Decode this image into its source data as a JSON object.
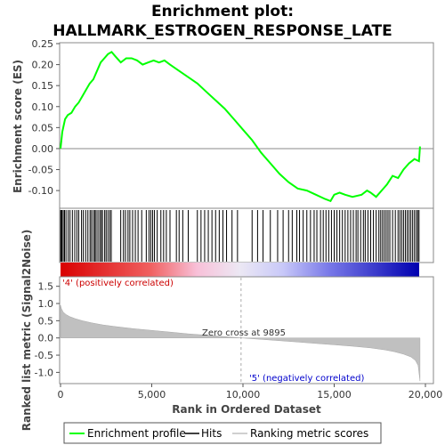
{
  "chart_data": {
    "type": "line",
    "title_line1": "Enrichment plot:",
    "title_line2": "HALLMARK_ESTROGEN_RESPONSE_LATE",
    "es_panel": {
      "ylabel": "Enrichment score (ES)",
      "ylim": [
        -0.14,
        0.25
      ],
      "yticks": [
        "0.25",
        "0.20",
        "0.15",
        "0.10",
        "0.05",
        "0.00",
        "-0.05",
        "-0.10"
      ],
      "ytick_values": [
        0.25,
        0.2,
        0.15,
        0.1,
        0.05,
        0.0,
        -0.05,
        -0.1
      ],
      "line_color": "#00ff00",
      "x": [
        0,
        100,
        250,
        400,
        600,
        800,
        1000,
        1200,
        1400,
        1600,
        1800,
        2000,
        2200,
        2400,
        2600,
        2800,
        3000,
        3300,
        3600,
        3900,
        4200,
        4500,
        4800,
        5100,
        5400,
        5700,
        6000,
        6500,
        7000,
        7500,
        8000,
        8500,
        9000,
        9500,
        10000,
        10500,
        11000,
        11500,
        12000,
        12500,
        13000,
        13500,
        14000,
        14500,
        14800,
        15000,
        15300,
        15600,
        16000,
        16500,
        16800,
        17000,
        17300,
        17600,
        17900,
        18200,
        18500,
        18800,
        19100,
        19400,
        19650,
        19700
      ],
      "y": [
        0.0,
        0.04,
        0.07,
        0.08,
        0.085,
        0.1,
        0.11,
        0.125,
        0.14,
        0.155,
        0.165,
        0.185,
        0.205,
        0.215,
        0.225,
        0.23,
        0.22,
        0.205,
        0.215,
        0.215,
        0.21,
        0.2,
        0.205,
        0.21,
        0.205,
        0.21,
        0.2,
        0.185,
        0.17,
        0.155,
        0.135,
        0.115,
        0.095,
        0.07,
        0.045,
        0.02,
        -0.01,
        -0.035,
        -0.06,
        -0.08,
        -0.095,
        -0.1,
        -0.11,
        -0.12,
        -0.125,
        -0.11,
        -0.105,
        -0.11,
        -0.115,
        -0.11,
        -0.1,
        -0.105,
        -0.115,
        -0.1,
        -0.085,
        -0.065,
        -0.07,
        -0.05,
        -0.035,
        -0.025,
        -0.03,
        0.005
      ]
    },
    "hits": [
      10,
      40,
      80,
      150,
      220,
      300,
      420,
      520,
      650,
      780,
      900,
      1000,
      1150,
      1250,
      1380,
      1500,
      1620,
      1700,
      1800,
      1880,
      1950,
      2050,
      2150,
      2230,
      2300,
      2420,
      2500,
      2600,
      2700,
      2780,
      3300,
      3450,
      3560,
      3700,
      3800,
      3950,
      4100,
      4250,
      4450,
      4700,
      4850,
      4950,
      5050,
      5150,
      5300,
      5500,
      5650,
      5800,
      6000,
      6350,
      6500,
      6700,
      7000,
      7500,
      7700,
      7900,
      8100,
      8300,
      8500,
      8700,
      8900,
      9100,
      9400,
      9700,
      10500,
      10800,
      11100,
      11500,
      11900,
      12200,
      12500,
      12700,
      12950,
      13100,
      13300,
      13500,
      13700,
      13900,
      14050,
      14250,
      14400,
      14550,
      14700,
      14850,
      15000,
      15150,
      15300,
      15450,
      15600,
      15750,
      15900,
      16050,
      16200,
      16300,
      16450,
      16600,
      16700,
      16850,
      17000,
      17150,
      17300,
      17450,
      17550,
      17650,
      17750,
      17850,
      17950,
      18050,
      18200,
      18350,
      18500,
      18600,
      18700,
      18800,
      18900,
      19000,
      19100,
      19200,
      19300,
      19400,
      19500,
      19580,
      19650
    ],
    "metric_panel": {
      "ylabel": "Ranked list metric (Signal2Noise)",
      "ylim": [
        -1.3,
        1.75
      ],
      "yticks": [
        "1.5",
        "1.0",
        "0.5",
        "0.0",
        "-0.5",
        "-1.0"
      ],
      "ytick_values": [
        1.5,
        1.0,
        0.5,
        0.0,
        -0.5,
        -1.0
      ],
      "x": [
        0,
        50,
        150,
        300,
        500,
        800,
        1200,
        1700,
        2300,
        3000,
        4000,
        5000,
        6000,
        7000,
        8000,
        9000,
        9895,
        11000,
        12000,
        13000,
        14000,
        15000,
        16000,
        17000,
        17800,
        18300,
        18800,
        19200,
        19450,
        19600,
        19700
      ],
      "y": [
        0.95,
        0.85,
        0.75,
        0.68,
        0.62,
        0.56,
        0.5,
        0.44,
        0.38,
        0.33,
        0.27,
        0.22,
        0.17,
        0.12,
        0.08,
        0.04,
        0.0,
        -0.04,
        -0.08,
        -0.12,
        -0.16,
        -0.2,
        -0.24,
        -0.29,
        -0.35,
        -0.4,
        -0.47,
        -0.55,
        -0.65,
        -0.8,
        -1.25
      ],
      "fill_color": "#c0c0c0"
    },
    "xlabel": "Rank in Ordered Dataset",
    "xlim": [
      0,
      20000
    ],
    "xticks": [
      "0",
      "5,000",
      "10,000",
      "15,000",
      "20,000"
    ],
    "xtick_values": [
      0,
      5000,
      10000,
      15000,
      20000
    ],
    "zero_cross_text": "Zero cross at 9895",
    "zero_cross_at": 9895,
    "pos_label": "'4' (positively correlated)",
    "neg_label": "'5' (negatively correlated)",
    "n_genes": 19700,
    "legend": [
      {
        "label": "Enrichment profile",
        "color": "#00ff00"
      },
      {
        "label": "Hits",
        "color": "#000000"
      },
      {
        "label": "Ranking metric scores",
        "color": "#c0c0c0"
      }
    ]
  }
}
